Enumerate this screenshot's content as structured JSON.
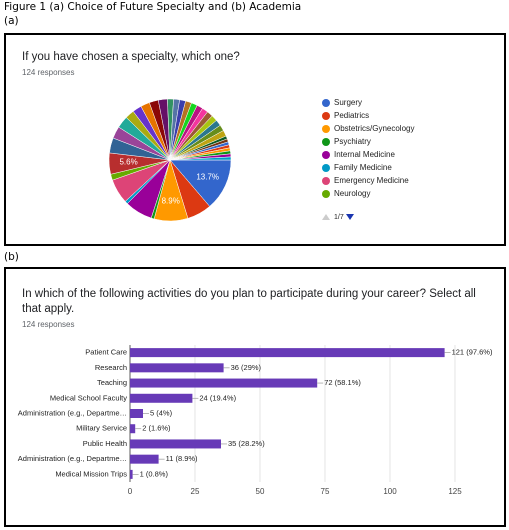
{
  "caption": "Figure 1 (a) Choice of Future Specialty and (b) Academia",
  "panel_a": "(a)",
  "panel_b": "(b)",
  "chart_data": [
    {
      "type": "pie",
      "title": "If you have chosen a specialty, which one?",
      "subtitle": "124 responses",
      "categories": [
        "Surgery",
        "Pediatrics",
        "Obstetrics/Gynecology",
        "Psychiatry",
        "Internal Medicine",
        "Family Medicine",
        "Emergency Medicine",
        "Neurology",
        null,
        null,
        null,
        null,
        null,
        null,
        null,
        null,
        null,
        null,
        null,
        null,
        null,
        null,
        null,
        null,
        null,
        null,
        null,
        null,
        null,
        null,
        null,
        null,
        null,
        null,
        null,
        null,
        null
      ],
      "values": [
        13.7,
        6.5,
        8.9,
        0.8,
        7.3,
        0.8,
        6.5,
        1.6,
        5.6,
        4.0,
        3.2,
        3.2,
        2.4,
        2.4,
        2.4,
        2.4,
        2.4,
        1.6,
        1.6,
        1.6,
        1.6,
        1.6,
        1.6,
        1.6,
        1.6,
        1.6,
        1.6,
        1.6,
        1.6,
        0.8,
        0.8,
        0.8,
        0.8,
        0.8,
        0.8,
        0.8,
        0.8
      ],
      "value_labels": [
        "13.7%",
        null,
        "8.9%",
        null,
        null,
        null,
        null,
        null,
        "5.6%",
        null,
        null,
        null,
        null,
        null,
        null,
        null,
        null,
        null,
        null,
        null,
        null,
        null,
        null,
        null,
        null,
        null,
        null,
        null,
        null,
        null,
        null,
        null,
        null,
        null,
        null,
        null,
        null
      ],
      "colors": [
        "#3366cc",
        "#dc3912",
        "#ff9900",
        "#109618",
        "#990099",
        "#0099c6",
        "#dd4477",
        "#66aa00",
        "#b82e2e",
        "#316395",
        "#994499",
        "#22aa99",
        "#aaaa11",
        "#6633cc",
        "#e67300",
        "#8b0707",
        "#651067",
        "#329262",
        "#5574a6",
        "#3b3eac",
        "#b77322",
        "#16d620",
        "#b91383",
        "#f4359e",
        "#9c5935",
        "#a9c413",
        "#2a778d",
        "#668d1c",
        "#bea413",
        "#0c5922",
        "#743411",
        "#3366cc",
        "#dc3912",
        "#ff9900",
        "#109618",
        "#990099",
        "#0099c6"
      ],
      "legend": "right",
      "legend_page": "1/7"
    },
    {
      "type": "hbar",
      "title": "In which of the following activities do you plan to participate during your career?  Select all that apply.",
      "subtitle": "124 responses",
      "categories": [
        "Patient Care",
        "Research",
        "Teaching",
        "Medical School Faculty",
        "Administration (e.g., Departme…",
        "Military Service",
        "Public Health",
        "Administration (e.g., Departme…",
        "Medical Mission Trips"
      ],
      "values": [
        121,
        36,
        72,
        24,
        5,
        2,
        35,
        11,
        1
      ],
      "value_labels": [
        "121 (97.6%)",
        "36 (29%)",
        "72 (58.1%)",
        "24 (19.4%)",
        "5 (4%)",
        "2 (1.6%)",
        "35 (28.2%)",
        "11 (8.9%)",
        "1 (0.8%)"
      ],
      "color": "#673ab7",
      "xlim": [
        0,
        130
      ],
      "xticks": [
        0,
        25,
        50,
        75,
        100,
        125
      ],
      "grid": true
    }
  ]
}
